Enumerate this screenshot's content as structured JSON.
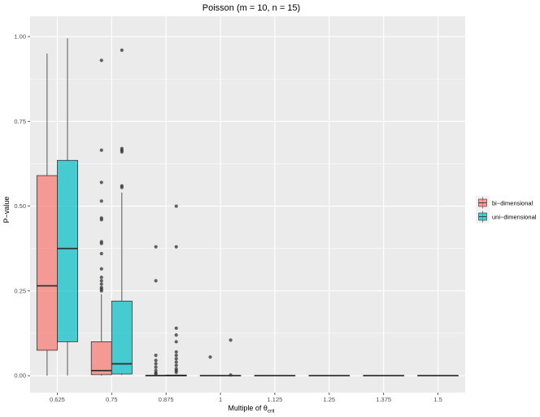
{
  "chart_data": {
    "type": "box",
    "title": "Poisson (m = 10, n = 15)",
    "xlabel_main": "Multiple of θ",
    "xlabel_sub": "crit",
    "ylabel": "P−value",
    "categories": [
      "0.625",
      "0.75",
      "0.875",
      "1",
      "1.125",
      "1.25",
      "1.375",
      "1.5"
    ],
    "ylim": [
      -0.05,
      1.06
    ],
    "yticks": [
      0.0,
      0.25,
      0.5,
      0.75,
      1.0
    ],
    "ytick_labels": [
      "0.00",
      "0.25",
      "0.50",
      "0.75",
      "1.00"
    ],
    "grid": true,
    "legend_position": "right",
    "series": [
      {
        "name": "bi−dimensional",
        "color": "#F8766D",
        "boxes": [
          {
            "q1": 0.075,
            "median": 0.265,
            "q3": 0.59,
            "lower": 0.0,
            "upper": 0.95,
            "outliers": []
          },
          {
            "q1": 0.003,
            "median": 0.015,
            "q3": 0.1,
            "lower": 0.0,
            "upper": 0.24,
            "outliers": [
              0.93,
              0.665,
              0.57,
              0.515,
              0.465,
              0.46,
              0.395,
              0.39,
              0.36,
              0.315,
              0.29,
              0.28,
              0.27,
              0.26,
              0.255,
              0.25
            ]
          },
          {
            "q1": 0.0,
            "median": 0.0,
            "q3": 0.001,
            "lower": 0.0,
            "upper": 0.002,
            "outliers": [
              0.38,
              0.28,
              0.06,
              0.045,
              0.035,
              0.025,
              0.015,
              0.008,
              0.005
            ]
          },
          {
            "q1": 0.0,
            "median": 0.0,
            "q3": 0.0,
            "lower": 0.0,
            "upper": 0.0,
            "outliers": [
              0.055
            ]
          },
          {
            "q1": 0.0,
            "median": 0.0,
            "q3": 0.0,
            "lower": 0.0,
            "upper": 0.0,
            "outliers": []
          },
          {
            "q1": 0.0,
            "median": 0.0,
            "q3": 0.0,
            "lower": 0.0,
            "upper": 0.0,
            "outliers": []
          },
          {
            "q1": 0.0,
            "median": 0.0,
            "q3": 0.0,
            "lower": 0.0,
            "upper": 0.0,
            "outliers": []
          },
          {
            "q1": 0.0,
            "median": 0.0,
            "q3": 0.0,
            "lower": 0.0,
            "upper": 0.0,
            "outliers": []
          }
        ]
      },
      {
        "name": "uni−dimensional",
        "color": "#00BFC4",
        "boxes": [
          {
            "q1": 0.1,
            "median": 0.375,
            "q3": 0.635,
            "lower": 0.0,
            "upper": 0.995,
            "outliers": []
          },
          {
            "q1": 0.005,
            "median": 0.035,
            "q3": 0.22,
            "lower": 0.002,
            "upper": 0.54,
            "outliers": [
              0.96,
              0.67,
              0.665,
              0.66,
              0.56,
              0.555
            ]
          },
          {
            "q1": 0.0,
            "median": 0.0,
            "q3": 0.002,
            "lower": 0.0,
            "upper": 0.004,
            "outliers": [
              0.5,
              0.38,
              0.14,
              0.12,
              0.1,
              0.07,
              0.06,
              0.05,
              0.04,
              0.03,
              0.02,
              0.015,
              0.01
            ]
          },
          {
            "q1": 0.0,
            "median": 0.0,
            "q3": 0.0,
            "lower": 0.0,
            "upper": 0.0,
            "outliers": [
              0.105,
              0.002
            ]
          },
          {
            "q1": 0.0,
            "median": 0.0,
            "q3": 0.0,
            "lower": 0.0,
            "upper": 0.0,
            "outliers": []
          },
          {
            "q1": 0.0,
            "median": 0.0,
            "q3": 0.0,
            "lower": 0.0,
            "upper": 0.0,
            "outliers": []
          },
          {
            "q1": 0.0,
            "median": 0.0,
            "q3": 0.0,
            "lower": 0.0,
            "upper": 0.0,
            "outliers": []
          },
          {
            "q1": 0.0,
            "median": 0.0,
            "q3": 0.0,
            "lower": 0.0,
            "upper": 0.0,
            "outliers": []
          }
        ]
      }
    ]
  },
  "colors": {
    "panel_background": "#EBEBEB",
    "grid_major": "#FFFFFF",
    "box_line": "#333333",
    "outlier": "#333333"
  }
}
